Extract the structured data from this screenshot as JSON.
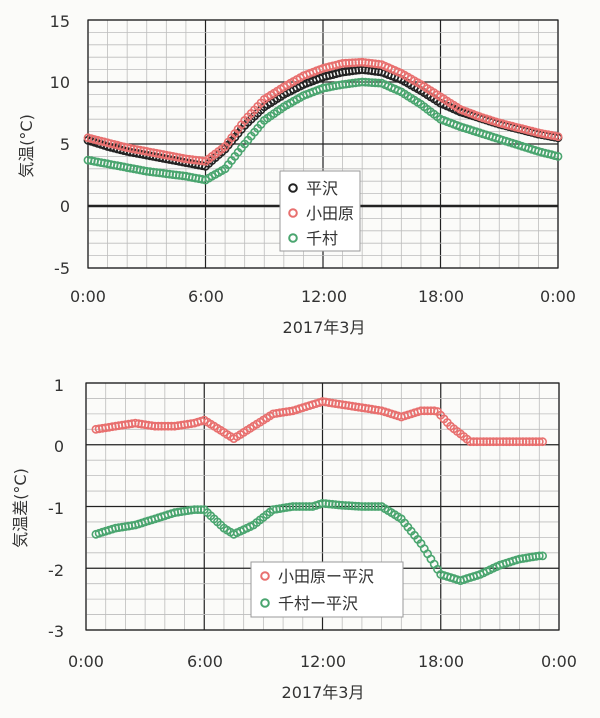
{
  "colors": {
    "hirasawa": "#222222",
    "odawara": "#e8706f",
    "semura": "#4aa56f",
    "grid_minor": "#bdbdbd",
    "grid_major": "#222222",
    "background": "#fbfbf9"
  },
  "chart_data": [
    {
      "type": "scatter",
      "id": "top",
      "ylabel": "気温(°C)",
      "xlabel": "2017年3月",
      "x_ticks": [
        "0:00",
        "6:00",
        "12:00",
        "18:00",
        "0:00"
      ],
      "x_range_hours": [
        0,
        24
      ],
      "y_ticks": [
        "15",
        "10",
        "5",
        "0",
        "-5"
      ],
      "ylim": [
        -5,
        15
      ],
      "grid": true,
      "legend_position": "center",
      "series": [
        {
          "name": "平沢",
          "key": "hirasawa",
          "x_hours": [
            0,
            1,
            2,
            3,
            4,
            5,
            6,
            7,
            8,
            9,
            10,
            11,
            12,
            13,
            14,
            15,
            16,
            17,
            18,
            19,
            20,
            21,
            22,
            23,
            24
          ],
          "values": [
            5.3,
            4.8,
            4.4,
            4.1,
            3.8,
            3.5,
            3.2,
            4.6,
            6.5,
            8.0,
            9.0,
            9.8,
            10.4,
            10.8,
            11.0,
            10.8,
            10.2,
            9.3,
            8.3,
            7.6,
            7.1,
            6.6,
            6.2,
            5.8,
            5.5
          ]
        },
        {
          "name": "小田原",
          "key": "odawara",
          "x_hours": [
            0,
            1,
            2,
            3,
            4,
            5,
            6,
            7,
            8,
            9,
            10,
            11,
            12,
            13,
            14,
            15,
            16,
            17,
            18,
            19,
            20,
            21,
            22,
            23,
            24
          ],
          "values": [
            5.5,
            5.1,
            4.7,
            4.4,
            4.1,
            3.8,
            3.6,
            4.8,
            6.9,
            8.6,
            9.6,
            10.5,
            11.1,
            11.5,
            11.6,
            11.4,
            10.7,
            9.8,
            8.8,
            7.8,
            7.2,
            6.7,
            6.3,
            5.9,
            5.6
          ]
        },
        {
          "name": "千村",
          "key": "semura",
          "x_hours": [
            0,
            1,
            2,
            3,
            4,
            5,
            6,
            7,
            8,
            9,
            10,
            11,
            12,
            13,
            14,
            15,
            16,
            17,
            18,
            19,
            20,
            21,
            22,
            23,
            24
          ],
          "values": [
            3.7,
            3.4,
            3.1,
            2.8,
            2.6,
            2.4,
            2.1,
            3.0,
            5.0,
            6.9,
            8.0,
            8.9,
            9.5,
            9.8,
            10.0,
            9.9,
            9.2,
            8.2,
            7.0,
            6.4,
            5.9,
            5.4,
            4.9,
            4.4,
            4.0
          ]
        }
      ]
    },
    {
      "type": "scatter",
      "id": "bottom",
      "ylabel": "気温差(°C)",
      "xlabel": "2017年3月",
      "x_ticks": [
        "0:00",
        "6:00",
        "12:00",
        "18:00",
        "0:00"
      ],
      "x_range_hours": [
        0,
        24
      ],
      "y_ticks": [
        "1",
        "0",
        "-1",
        "-2",
        "-3"
      ],
      "ylim": [
        -3,
        1
      ],
      "grid": true,
      "legend_position": "bottom-center",
      "series": [
        {
          "name": "小田原ー平沢",
          "key": "odawara",
          "x_hours": [
            0.5,
            1.5,
            2.5,
            3.5,
            4.5,
            5.5,
            6.0,
            7.0,
            7.5,
            8.5,
            9.5,
            10.5,
            11.5,
            12.0,
            13.0,
            14.0,
            15.0,
            16.0,
            17.0,
            17.8,
            18.5,
            19.5,
            20.5,
            21.5,
            22.5,
            23.3
          ],
          "values": [
            0.25,
            0.3,
            0.35,
            0.3,
            0.3,
            0.35,
            0.4,
            0.2,
            0.1,
            0.3,
            0.5,
            0.55,
            0.65,
            0.7,
            0.65,
            0.6,
            0.55,
            0.45,
            0.55,
            0.55,
            0.3,
            0.05,
            0.05,
            0.05,
            0.05,
            0.05
          ]
        },
        {
          "name": "千村ー平沢",
          "key": "semura",
          "x_hours": [
            0.5,
            1.5,
            2.5,
            3.5,
            4.5,
            5.5,
            6.0,
            7.0,
            7.5,
            8.5,
            9.5,
            10.5,
            11.5,
            12.0,
            13.0,
            14.0,
            15.0,
            16.0,
            17.0,
            18.0,
            19.0,
            20.0,
            21.0,
            22.0,
            23.0,
            23.3
          ],
          "values": [
            -1.45,
            -1.35,
            -1.3,
            -1.2,
            -1.1,
            -1.05,
            -1.05,
            -1.35,
            -1.45,
            -1.3,
            -1.05,
            -1.0,
            -1.0,
            -0.95,
            -0.98,
            -1.0,
            -1.0,
            -1.2,
            -1.6,
            -2.1,
            -2.2,
            -2.1,
            -1.95,
            -1.85,
            -1.8,
            -1.8
          ]
        }
      ]
    }
  ]
}
